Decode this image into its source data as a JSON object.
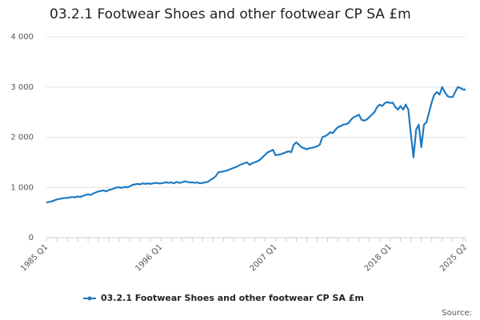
{
  "chart_data": {
    "type": "line",
    "title": "03.2.1 Footwear Shoes and other footwear CP SA £m",
    "categories": [
      "1985 Q1",
      null,
      null,
      null,
      null,
      null,
      null,
      null,
      null,
      null,
      null,
      null,
      null,
      null,
      null,
      null,
      null,
      null,
      null,
      null,
      null,
      null,
      null,
      null,
      null,
      null,
      null,
      null,
      null,
      null,
      null,
      null,
      null,
      null,
      null,
      null,
      null,
      null,
      null,
      null,
      null,
      null,
      null,
      null,
      "1996 Q1",
      null,
      null,
      null,
      null,
      null,
      null,
      null,
      null,
      null,
      null,
      null,
      null,
      null,
      null,
      null,
      null,
      null,
      null,
      null,
      null,
      null,
      null,
      null,
      null,
      null,
      null,
      null,
      null,
      null,
      null,
      null,
      null,
      null,
      null,
      null,
      null,
      null,
      null,
      null,
      null,
      null,
      null,
      null,
      "2007 Q1",
      null,
      null,
      null,
      null,
      null,
      null,
      null,
      null,
      null,
      null,
      null,
      null,
      null,
      null,
      null,
      null,
      null,
      null,
      null,
      null,
      null,
      null,
      null,
      null,
      null,
      null,
      null,
      null,
      null,
      null,
      null,
      null,
      null,
      null,
      null,
      null,
      null,
      null,
      null,
      null,
      null,
      null,
      null,
      "2018 Q1",
      null,
      null,
      null,
      null,
      null,
      null,
      null,
      null,
      null,
      null,
      null,
      null,
      null,
      null,
      null,
      null,
      null,
      null,
      null,
      null,
      null,
      null,
      null,
      null,
      null,
      null,
      null,
      null,
      "2025 Q2"
    ],
    "series": [
      {
        "name": "03.2.1 Footwear Shoes and other footwear CP SA £m",
        "color": "#1f7ac0",
        "values": [
          700,
          710,
          720,
          740,
          760,
          770,
          780,
          790,
          790,
          800,
          810,
          800,
          820,
          810,
          830,
          850,
          860,
          850,
          880,
          900,
          920,
          930,
          940,
          920,
          950,
          960,
          980,
          1000,
          1000,
          990,
          1010,
          1000,
          1020,
          1050,
          1060,
          1070,
          1060,
          1080,
          1070,
          1080,
          1070,
          1080,
          1090,
          1080,
          1080,
          1090,
          1100,
          1090,
          1100,
          1080,
          1110,
          1090,
          1100,
          1120,
          1110,
          1100,
          1100,
          1090,
          1100,
          1080,
          1090,
          1100,
          1110,
          1150,
          1180,
          1220,
          1300,
          1310,
          1320,
          1330,
          1350,
          1370,
          1390,
          1410,
          1440,
          1460,
          1480,
          1500,
          1450,
          1480,
          1500,
          1520,
          1550,
          1600,
          1650,
          1700,
          1720,
          1750,
          1640,
          1650,
          1660,
          1680,
          1700,
          1720,
          1700,
          1850,
          1900,
          1850,
          1800,
          1780,
          1760,
          1780,
          1790,
          1800,
          1820,
          1850,
          2000,
          2020,
          2050,
          2100,
          2080,
          2150,
          2200,
          2220,
          2250,
          2260,
          2280,
          2350,
          2400,
          2420,
          2450,
          2350,
          2330,
          2350,
          2400,
          2450,
          2500,
          2600,
          2650,
          2620,
          2680,
          2700,
          2680,
          2690,
          2600,
          2550,
          2620,
          2550,
          2650,
          2550,
          2050,
          1600,
          2150,
          2250,
          1800,
          2250,
          2300,
          2500,
          2700,
          2850,
          2900,
          2850,
          3000,
          2900,
          2820,
          2800,
          2800,
          2900,
          3000,
          2980,
          2950,
          2950
        ]
      }
    ],
    "ylim": [
      0,
      4000
    ],
    "yticks": [
      0,
      {
        "value": 1000,
        "label": "1 000"
      },
      {
        "value": 2000,
        "label": "2 000"
      },
      {
        "value": 3000,
        "label": "3 000"
      },
      {
        "value": 4000,
        "label": "4 000"
      }
    ],
    "grid": true,
    "source": "Source:"
  }
}
